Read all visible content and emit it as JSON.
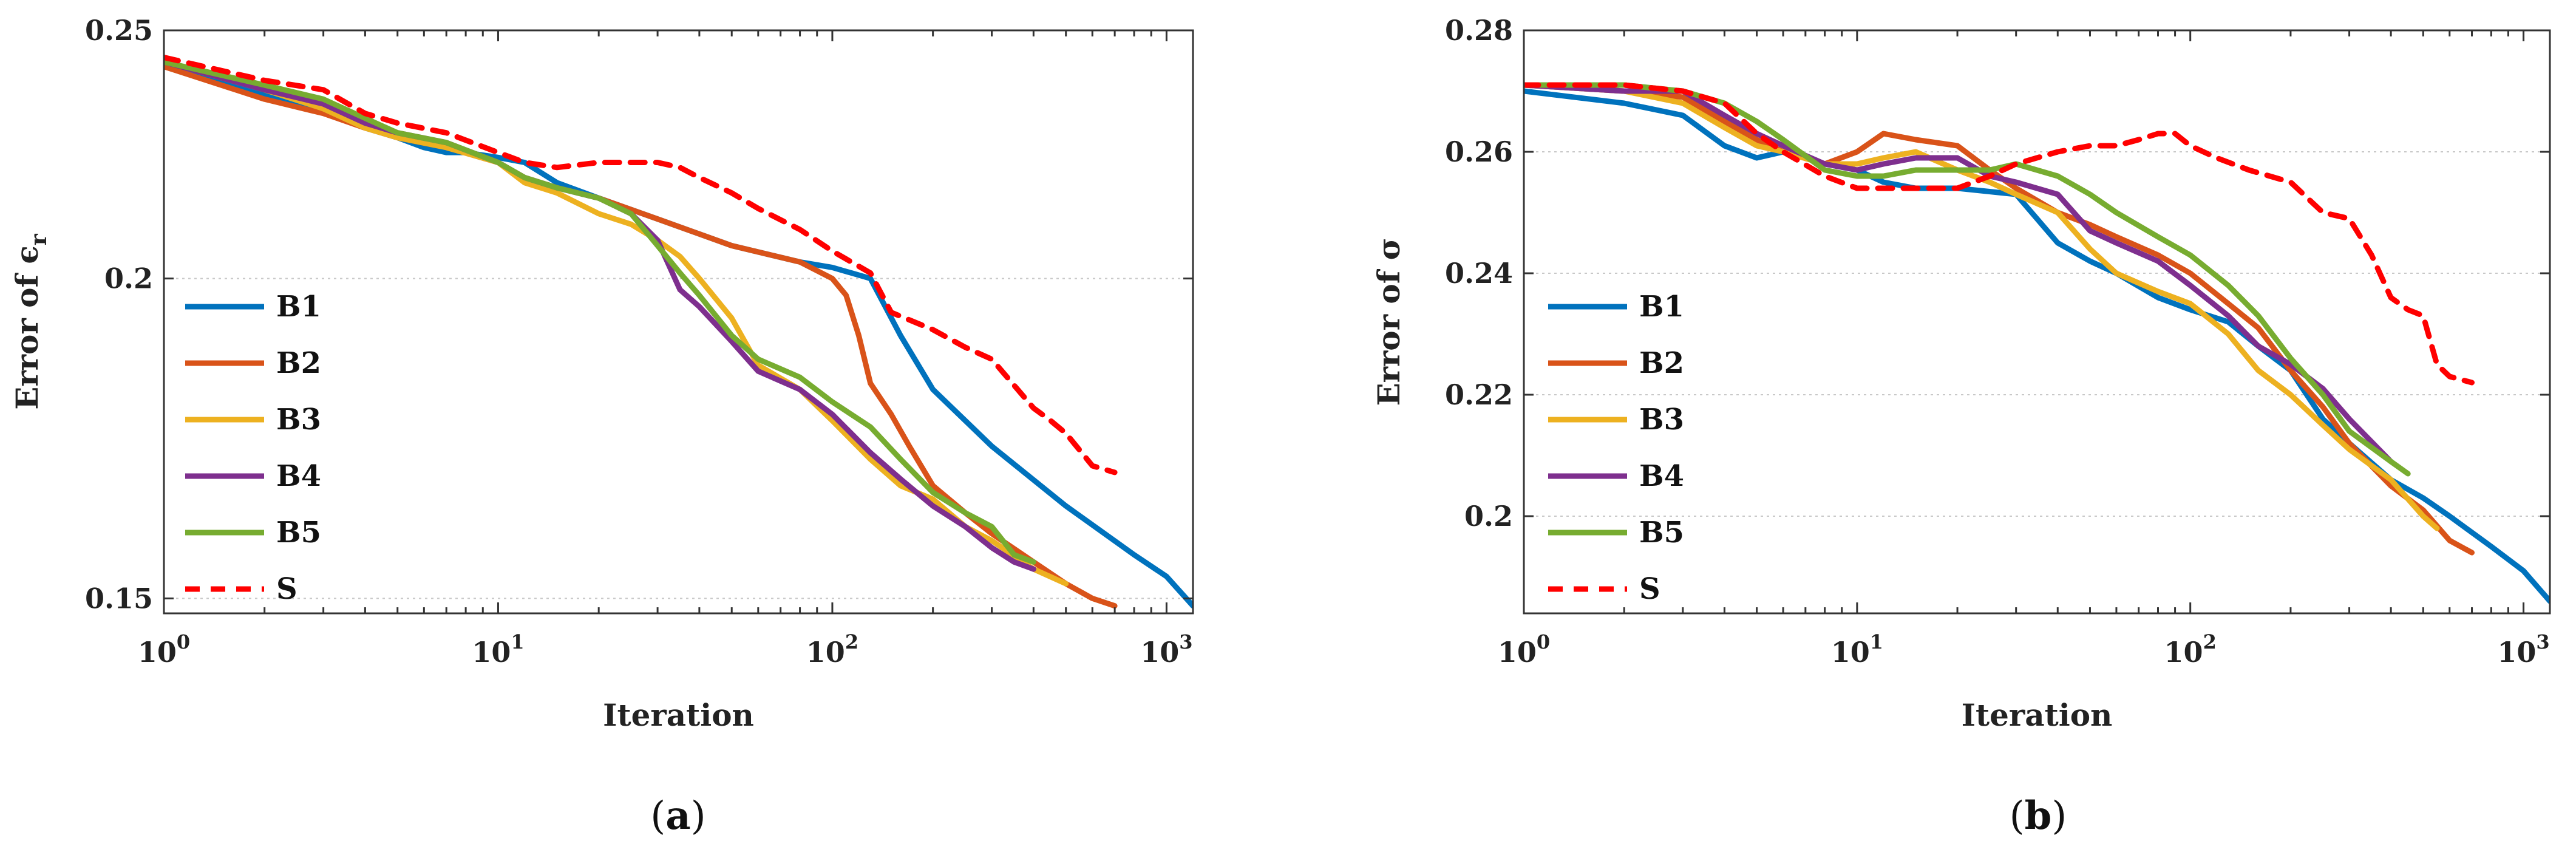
{
  "chart_data": [
    {
      "type": "line",
      "panel": "a",
      "panel_label_open": "(",
      "panel_label_letter": "a",
      "panel_label_close": ")",
      "title": "",
      "xlabel": "Iteration",
      "ylabel": "Error of ϵ",
      "ylabel_sub": "r",
      "xscale": "log",
      "xlim": [
        1,
        1200
      ],
      "yscale": "log",
      "ylim": [
        0.148,
        0.25
      ],
      "yticks": [
        0.15,
        0.2,
        0.25
      ],
      "ytick_labels": [
        "0.15",
        "0.2",
        "0.25"
      ],
      "xticks": [
        {
          "base": "10",
          "exp": "0",
          "value": 1
        },
        {
          "base": "10",
          "exp": "1",
          "value": 10
        },
        {
          "base": "10",
          "exp": "2",
          "value": 100
        },
        {
          "base": "10",
          "exp": "3",
          "value": 1000
        }
      ],
      "legend_position": "lower-left",
      "series": [
        {
          "name": "B1",
          "color": "#0072BD",
          "dash": "solid",
          "x": [
            1,
            2,
            3,
            4,
            5,
            6,
            7,
            8,
            10,
            12,
            15,
            20,
            30,
            50,
            80,
            100,
            130,
            160,
            200,
            300,
            500,
            800,
            1000,
            1200
          ],
          "y": [
            0.242,
            0.236,
            0.233,
            0.229,
            0.227,
            0.225,
            0.224,
            0.224,
            0.223,
            0.222,
            0.218,
            0.215,
            0.211,
            0.206,
            0.203,
            0.202,
            0.2,
            0.19,
            0.181,
            0.172,
            0.163,
            0.156,
            0.153,
            0.149
          ]
        },
        {
          "name": "B2",
          "color": "#D95319",
          "dash": "solid",
          "x": [
            1,
            2,
            3,
            4,
            5,
            7,
            10,
            12,
            15,
            20,
            30,
            50,
            80,
            100,
            110,
            120,
            130,
            150,
            170,
            200,
            250,
            300,
            400,
            500,
            600,
            700
          ],
          "y": [
            0.242,
            0.235,
            0.232,
            0.229,
            0.227,
            0.225,
            0.222,
            0.219,
            0.217,
            0.215,
            0.211,
            0.206,
            0.203,
            0.2,
            0.197,
            0.19,
            0.182,
            0.177,
            0.172,
            0.166,
            0.162,
            0.159,
            0.155,
            0.152,
            0.15,
            0.149
          ]
        },
        {
          "name": "B3",
          "color": "#EDB120",
          "dash": "solid",
          "x": [
            1,
            2,
            3,
            4,
            5,
            7,
            10,
            12,
            15,
            20,
            25,
            30,
            35,
            40,
            50,
            60,
            80,
            100,
            130,
            160,
            200,
            250,
            300,
            400,
            500
          ],
          "y": [
            0.243,
            0.237,
            0.233,
            0.229,
            0.227,
            0.225,
            0.222,
            0.218,
            0.216,
            0.212,
            0.21,
            0.207,
            0.204,
            0.2,
            0.193,
            0.185,
            0.181,
            0.176,
            0.17,
            0.166,
            0.164,
            0.16,
            0.158,
            0.154,
            0.152
          ]
        },
        {
          "name": "B4",
          "color": "#7E2F8E",
          "dash": "solid",
          "x": [
            1,
            2,
            3,
            4,
            5,
            7,
            10,
            12,
            15,
            20,
            25,
            30,
            35,
            40,
            50,
            60,
            80,
            100,
            130,
            160,
            200,
            250,
            300,
            350,
            400
          ],
          "y": [
            0.243,
            0.237,
            0.234,
            0.23,
            0.228,
            0.226,
            0.222,
            0.219,
            0.217,
            0.215,
            0.212,
            0.207,
            0.198,
            0.195,
            0.189,
            0.184,
            0.181,
            0.177,
            0.171,
            0.167,
            0.163,
            0.16,
            0.157,
            0.155,
            0.154
          ]
        },
        {
          "name": "B5",
          "color": "#77AC30",
          "dash": "solid",
          "x": [
            1,
            2,
            3,
            4,
            5,
            7,
            10,
            12,
            15,
            20,
            25,
            30,
            35,
            40,
            50,
            60,
            80,
            100,
            130,
            160,
            200,
            250,
            300,
            350,
            400
          ],
          "y": [
            0.243,
            0.238,
            0.235,
            0.231,
            0.228,
            0.226,
            0.222,
            0.219,
            0.217,
            0.215,
            0.212,
            0.206,
            0.201,
            0.197,
            0.19,
            0.186,
            0.183,
            0.179,
            0.175,
            0.17,
            0.165,
            0.162,
            0.16,
            0.156,
            0.155
          ]
        },
        {
          "name": "S",
          "color": "#FF0000",
          "dash": "dashed",
          "x": [
            1,
            2,
            3,
            4,
            5,
            7,
            10,
            12,
            15,
            20,
            25,
            30,
            35,
            40,
            50,
            60,
            80,
            100,
            130,
            150,
            200,
            250,
            300,
            400,
            450,
            500,
            600,
            700
          ],
          "y": [
            0.244,
            0.239,
            0.237,
            0.232,
            0.23,
            0.228,
            0.224,
            0.222,
            0.221,
            0.222,
            0.222,
            0.222,
            0.221,
            0.219,
            0.216,
            0.213,
            0.209,
            0.205,
            0.201,
            0.194,
            0.191,
            0.188,
            0.186,
            0.178,
            0.176,
            0.174,
            0.169,
            0.168
          ]
        }
      ]
    },
    {
      "type": "line",
      "panel": "b",
      "panel_label_open": "(",
      "panel_label_letter": "b",
      "panel_label_close": ")",
      "title": "",
      "xlabel": "Iteration",
      "ylabel": "Error of σ",
      "xscale": "log",
      "xlim": [
        1,
        1200
      ],
      "yscale": "linear",
      "ylim": [
        0.184,
        0.28
      ],
      "yticks": [
        0.2,
        0.22,
        0.24,
        0.26,
        0.28
      ],
      "ytick_labels": [
        "0.2",
        "0.22",
        "0.24",
        "0.26",
        "0.28"
      ],
      "xticks": [
        {
          "base": "10",
          "exp": "0",
          "value": 1
        },
        {
          "base": "10",
          "exp": "1",
          "value": 10
        },
        {
          "base": "10",
          "exp": "2",
          "value": 100
        },
        {
          "base": "10",
          "exp": "3",
          "value": 1000
        }
      ],
      "legend_position": "lower-left",
      "series": [
        {
          "name": "B1",
          "color": "#0072BD",
          "dash": "solid",
          "x": [
            1,
            2,
            3,
            4,
            5,
            6,
            8,
            10,
            12,
            15,
            20,
            30,
            40,
            50,
            60,
            80,
            100,
            130,
            160,
            200,
            250,
            300,
            400,
            500,
            600,
            800,
            1000,
            1200
          ],
          "y": [
            0.27,
            0.268,
            0.266,
            0.261,
            0.259,
            0.26,
            0.258,
            0.257,
            0.255,
            0.254,
            0.254,
            0.253,
            0.245,
            0.242,
            0.24,
            0.236,
            0.234,
            0.232,
            0.228,
            0.224,
            0.216,
            0.212,
            0.206,
            0.203,
            0.2,
            0.195,
            0.191,
            0.186
          ]
        },
        {
          "name": "B2",
          "color": "#D95319",
          "dash": "solid",
          "x": [
            1,
            2,
            3,
            4,
            5,
            6,
            8,
            10,
            12,
            15,
            20,
            25,
            30,
            40,
            50,
            60,
            80,
            100,
            130,
            160,
            200,
            250,
            300,
            400,
            500,
            600,
            700
          ],
          "y": [
            0.271,
            0.27,
            0.269,
            0.265,
            0.262,
            0.26,
            0.258,
            0.26,
            0.263,
            0.262,
            0.261,
            0.257,
            0.254,
            0.25,
            0.248,
            0.246,
            0.243,
            0.24,
            0.235,
            0.231,
            0.224,
            0.218,
            0.212,
            0.205,
            0.201,
            0.196,
            0.194
          ]
        },
        {
          "name": "B3",
          "color": "#EDB120",
          "dash": "solid",
          "x": [
            1,
            2,
            3,
            4,
            5,
            6,
            8,
            10,
            12,
            15,
            20,
            25,
            30,
            40,
            50,
            60,
            80,
            100,
            130,
            160,
            200,
            250,
            300,
            400,
            500,
            550
          ],
          "y": [
            0.271,
            0.27,
            0.268,
            0.264,
            0.261,
            0.26,
            0.258,
            0.258,
            0.259,
            0.26,
            0.257,
            0.255,
            0.253,
            0.25,
            0.244,
            0.24,
            0.237,
            0.235,
            0.23,
            0.224,
            0.22,
            0.215,
            0.211,
            0.206,
            0.2,
            0.198
          ]
        },
        {
          "name": "B4",
          "color": "#7E2F8E",
          "dash": "solid",
          "x": [
            1,
            2,
            3,
            4,
            5,
            6,
            8,
            10,
            12,
            15,
            20,
            25,
            30,
            40,
            50,
            60,
            80,
            100,
            130,
            160,
            200,
            250,
            300,
            400
          ],
          "y": [
            0.271,
            0.27,
            0.27,
            0.266,
            0.263,
            0.261,
            0.258,
            0.257,
            0.258,
            0.259,
            0.259,
            0.256,
            0.255,
            0.253,
            0.247,
            0.245,
            0.242,
            0.238,
            0.233,
            0.228,
            0.225,
            0.221,
            0.216,
            0.209
          ]
        },
        {
          "name": "B5",
          "color": "#77AC30",
          "dash": "solid",
          "x": [
            1,
            2,
            3,
            4,
            5,
            6,
            8,
            10,
            12,
            15,
            20,
            25,
            30,
            40,
            50,
            60,
            80,
            100,
            130,
            160,
            200,
            250,
            300,
            400,
            450
          ],
          "y": [
            0.271,
            0.271,
            0.27,
            0.268,
            0.265,
            0.262,
            0.257,
            0.256,
            0.256,
            0.257,
            0.257,
            0.257,
            0.258,
            0.256,
            0.253,
            0.25,
            0.246,
            0.243,
            0.238,
            0.233,
            0.226,
            0.22,
            0.214,
            0.209,
            0.207
          ]
        },
        {
          "name": "S",
          "color": "#FF0000",
          "dash": "dashed",
          "x": [
            1,
            2,
            3,
            4,
            5,
            6,
            8,
            10,
            12,
            15,
            20,
            25,
            30,
            40,
            50,
            60,
            70,
            80,
            90,
            100,
            120,
            150,
            200,
            250,
            300,
            350,
            400,
            450,
            500,
            550,
            600,
            700
          ],
          "y": [
            0.271,
            0.271,
            0.27,
            0.268,
            0.263,
            0.26,
            0.256,
            0.254,
            0.254,
            0.254,
            0.254,
            0.256,
            0.258,
            0.26,
            0.261,
            0.261,
            0.262,
            0.263,
            0.263,
            0.261,
            0.259,
            0.257,
            0.255,
            0.25,
            0.249,
            0.243,
            0.236,
            0.234,
            0.233,
            0.225,
            0.223,
            0.222
          ]
        }
      ]
    }
  ]
}
